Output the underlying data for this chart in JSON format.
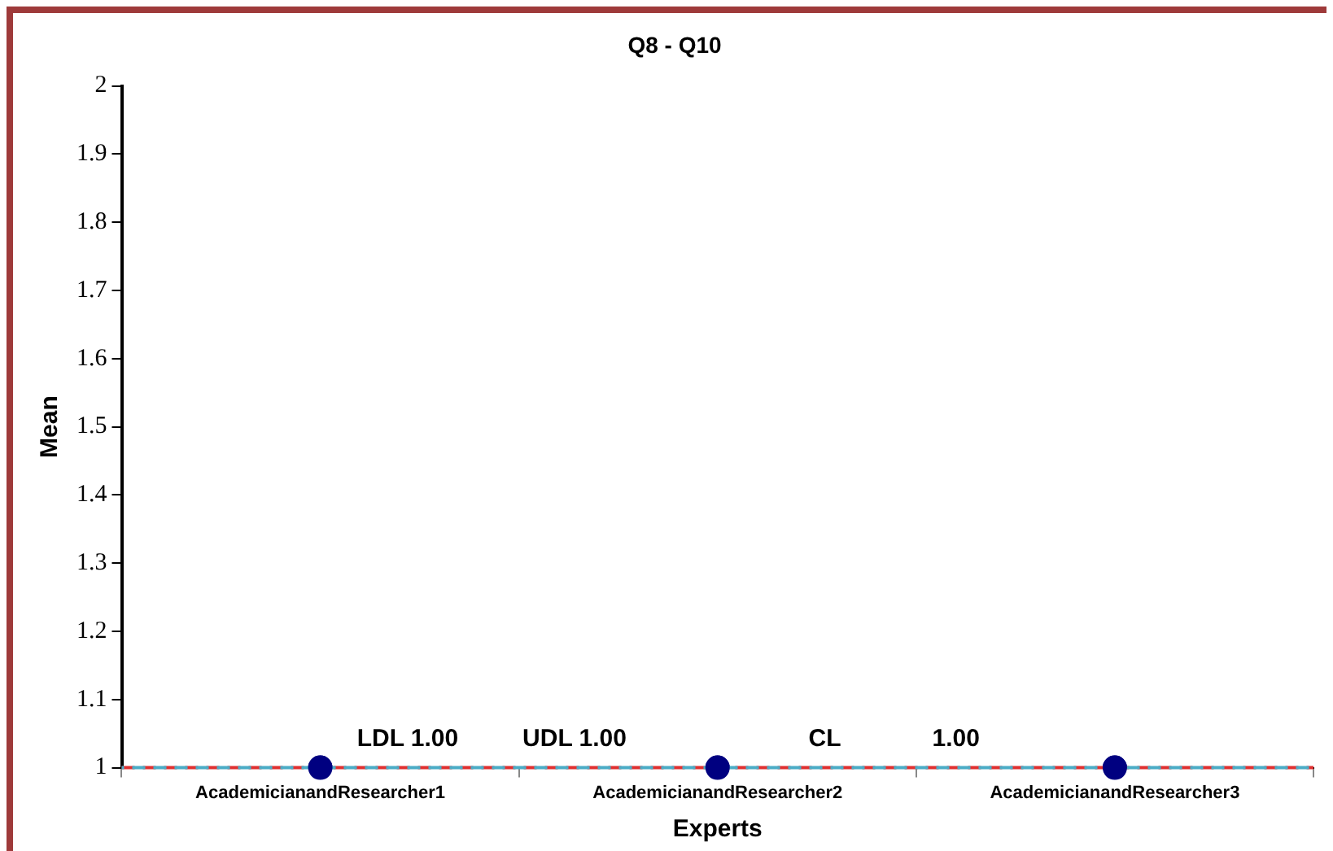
{
  "chart_data": {
    "type": "scatter",
    "title": "Q8 - Q10",
    "xlabel": "Experts",
    "ylabel": "Mean",
    "categories": [
      "AcademicianandResearcher1",
      "AcademicianandResearcher2",
      "AcademicianandResearcher3"
    ],
    "series": [
      {
        "color": "#000080",
        "values": [
          1,
          1,
          1
        ]
      }
    ],
    "ylim": [
      1,
      2
    ],
    "yticks": [
      1,
      1.1,
      1.2,
      1.3,
      1.4,
      1.5,
      1.6,
      1.7,
      1.8,
      1.9,
      2
    ],
    "ref_lines": [
      {
        "axis": "y",
        "value": 1,
        "label": "LDL 1.00",
        "color": "#e03030",
        "line_style": "dashed"
      },
      {
        "axis": "y",
        "value": 1,
        "label": "CL",
        "color": "#4bacc6",
        "line_style": "dashed"
      }
    ],
    "annotations": [
      "UDL 1.00",
      "1.00"
    ],
    "grid": false,
    "legend": false,
    "marker": "circle"
  }
}
